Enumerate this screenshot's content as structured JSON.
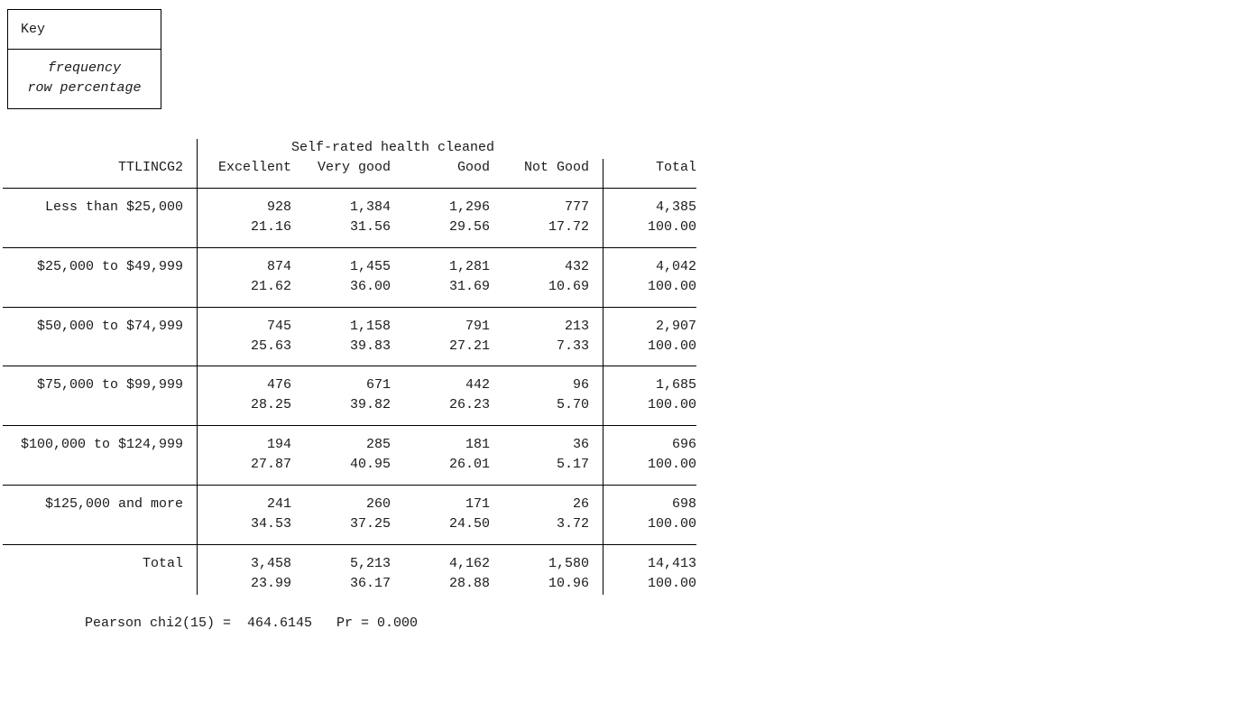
{
  "key": {
    "title": "Key",
    "line1": "frequency",
    "line2": "row percentage"
  },
  "table": {
    "spanner": "Self-rated health cleaned",
    "row_var": "TTLINCG2",
    "columns": [
      "Excellent",
      "Very good",
      "Good",
      "Not Good",
      "Total"
    ],
    "rows": [
      {
        "label": "Less than $25,000",
        "freq": [
          "928",
          "1,384",
          "1,296",
          "777",
          "4,385"
        ],
        "pct": [
          "21.16",
          "31.56",
          "29.56",
          "17.72",
          "100.00"
        ]
      },
      {
        "label": "$25,000 to $49,999",
        "freq": [
          "874",
          "1,455",
          "1,281",
          "432",
          "4,042"
        ],
        "pct": [
          "21.62",
          "36.00",
          "31.69",
          "10.69",
          "100.00"
        ]
      },
      {
        "label": "$50,000 to $74,999",
        "freq": [
          "745",
          "1,158",
          "791",
          "213",
          "2,907"
        ],
        "pct": [
          "25.63",
          "39.83",
          "27.21",
          "7.33",
          "100.00"
        ]
      },
      {
        "label": "$75,000 to $99,999",
        "freq": [
          "476",
          "671",
          "442",
          "96",
          "1,685"
        ],
        "pct": [
          "28.25",
          "39.82",
          "26.23",
          "5.70",
          "100.00"
        ]
      },
      {
        "label": "$100,000 to $124,999",
        "freq": [
          "194",
          "285",
          "181",
          "36",
          "696"
        ],
        "pct": [
          "27.87",
          "40.95",
          "26.01",
          "5.17",
          "100.00"
        ]
      },
      {
        "label": "$125,000 and more",
        "freq": [
          "241",
          "260",
          "171",
          "26",
          "698"
        ],
        "pct": [
          "34.53",
          "37.25",
          "24.50",
          "3.72",
          "100.00"
        ]
      }
    ],
    "total": {
      "label": "Total",
      "freq": [
        "3,458",
        "5,213",
        "4,162",
        "1,580",
        "14,413"
      ],
      "pct": [
        "23.99",
        "36.17",
        "28.88",
        "10.96",
        "100.00"
      ]
    }
  },
  "stats": {
    "chi2": "Pearson chi2(15) =  464.6145   Pr = 0.000"
  }
}
